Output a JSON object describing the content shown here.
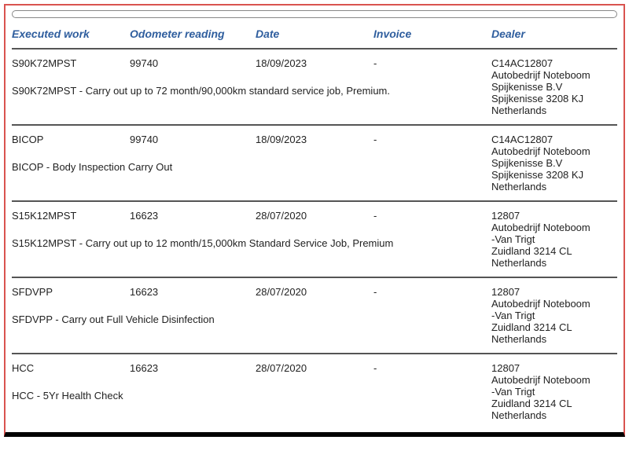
{
  "headers": {
    "work": "Executed work",
    "odo": "Odometer reading",
    "date": "Date",
    "invoice": "Invoice",
    "dealer": "Dealer"
  },
  "records": [
    {
      "work": "S90K72MPST",
      "odo": "99740",
      "date": "18/09/2023",
      "invoice": "-",
      "dealer": "C14AC12807\nAutobedrijf Noteboom\nSpijkenisse B.V\nSpijkenisse 3208 KJ\nNetherlands",
      "desc": "S90K72MPST - Carry out up to 72 month/90,000km standard service job, Premium."
    },
    {
      "work": "BICOP",
      "odo": "99740",
      "date": "18/09/2023",
      "invoice": "-",
      "dealer": "C14AC12807\nAutobedrijf Noteboom\nSpijkenisse B.V\nSpijkenisse 3208 KJ\nNetherlands",
      "desc": "BICOP - Body Inspection Carry Out"
    },
    {
      "work": "S15K12MPST",
      "odo": "16623",
      "date": "28/07/2020",
      "invoice": "-",
      "dealer": "12807\nAutobedrijf Noteboom\n-Van Trigt\nZuidland 3214 CL\nNetherlands",
      "desc": "S15K12MPST - Carry out up to 12 month/15,000km Standard Service Job, Premium"
    },
    {
      "work": "SFDVPP",
      "odo": "16623",
      "date": "28/07/2020",
      "invoice": "-",
      "dealer": "12807\nAutobedrijf Noteboom\n-Van Trigt\nZuidland 3214 CL\nNetherlands",
      "desc": "SFDVPP - Carry out Full Vehicle Disinfection"
    },
    {
      "work": "HCC",
      "odo": "16623",
      "date": "28/07/2020",
      "invoice": "-",
      "dealer": "12807\nAutobedrijf Noteboom\n-Van Trigt\nZuidland 3214 CL\nNetherlands",
      "desc": "HCC - 5Yr Health Check"
    }
  ]
}
